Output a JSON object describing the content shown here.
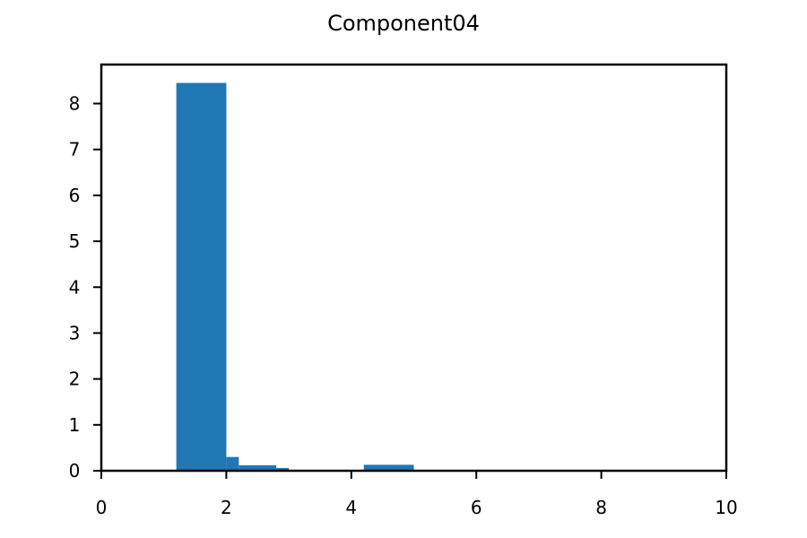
{
  "chart_data": {
    "type": "bar",
    "title": "Component04",
    "xlabel": "",
    "ylabel": "",
    "xlim": [
      0,
      10
    ],
    "ylim": [
      0,
      8.85
    ],
    "x_ticks": [
      0,
      2,
      4,
      6,
      8,
      10
    ],
    "y_ticks": [
      0,
      1,
      2,
      3,
      4,
      5,
      6,
      7,
      8
    ],
    "grid": false,
    "bar_color": "#1f77b4",
    "bins": [
      {
        "x0": 1.2,
        "x1": 2.0,
        "value": 8.45
      },
      {
        "x0": 2.0,
        "x1": 2.2,
        "value": 0.3
      },
      {
        "x0": 2.2,
        "x1": 2.8,
        "value": 0.12
      },
      {
        "x0": 2.8,
        "x1": 3.0,
        "value": 0.06
      },
      {
        "x0": 4.2,
        "x1": 5.0,
        "value": 0.13
      }
    ]
  }
}
